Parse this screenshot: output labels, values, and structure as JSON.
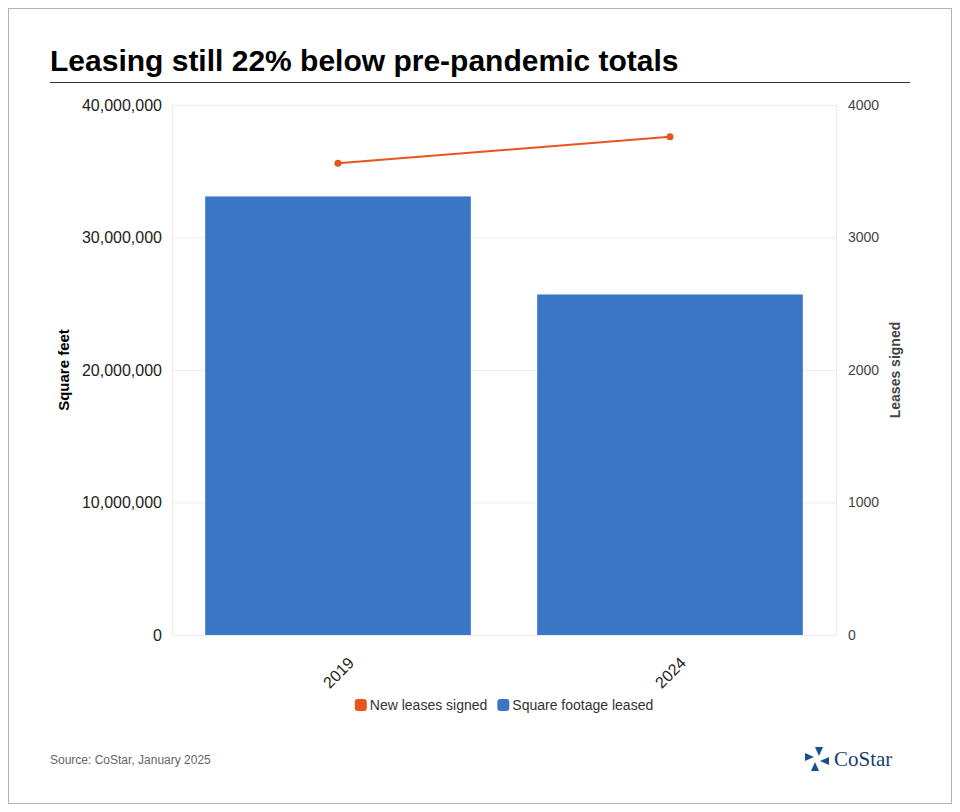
{
  "chart_data": {
    "type": "bar",
    "title": "Leasing still 22% below pre-pandemic totals",
    "categories": [
      "2019",
      "2024"
    ],
    "y_label": "Square feet",
    "y2_label": "Leases signed",
    "ylim": [
      0,
      40000000
    ],
    "yticks": [
      0,
      {
        "value": 10000000,
        "label": "10,000,000"
      },
      {
        "value": 20000000,
        "label": "20,000,000"
      },
      {
        "value": 30000000,
        "label": "30,000,000"
      },
      {
        "value": 40000000,
        "label": "40,000,000"
      }
    ],
    "y2lim": [
      0,
      4000
    ],
    "y2ticks": [
      0,
      1000,
      2000,
      3000,
      4000
    ],
    "grid": true,
    "legend": "bottom",
    "series": [
      {
        "name": "New leases signed",
        "type": "line",
        "axis": "y2",
        "color": "#e8541e",
        "marker": "circle",
        "values": [
          3560,
          3760
        ]
      },
      {
        "name": "Square footage leased",
        "type": "bar",
        "color": "#3b75c5",
        "values": [
          33100000,
          25700000
        ]
      }
    ],
    "annotations": [
      "Source: CoStar, January 2025"
    ],
    "brand": "CoStar"
  }
}
